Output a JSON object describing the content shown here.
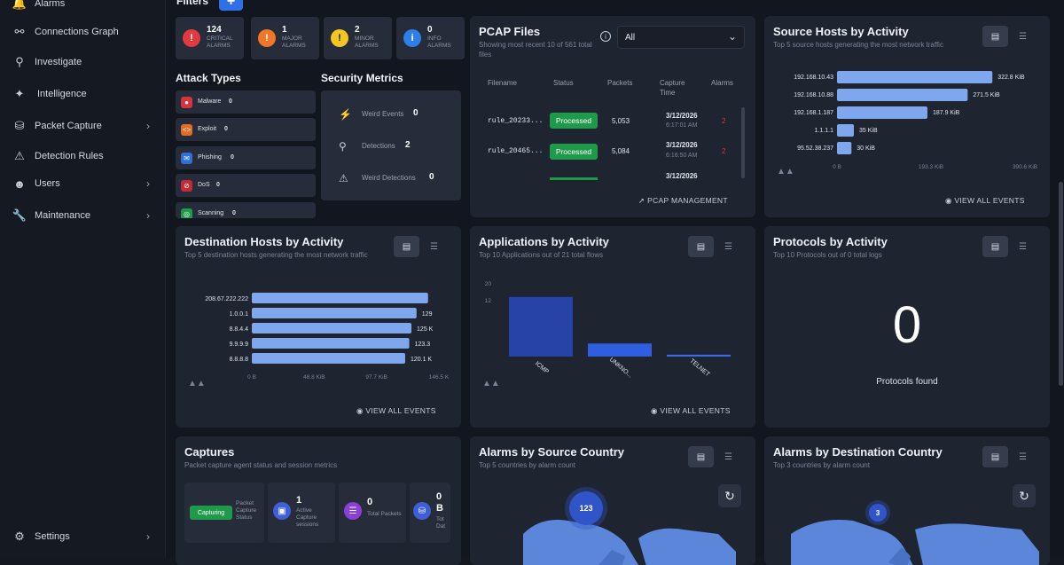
{
  "sidebar": {
    "items": [
      {
        "label": "Alarms",
        "icon": "bell-icon"
      },
      {
        "label": "Connections Graph",
        "icon": "share-icon"
      },
      {
        "label": "Investigate",
        "icon": "search-icon"
      },
      {
        "label": "Intelligence",
        "icon": "sparkle-icon"
      },
      {
        "label": "Packet Capture",
        "icon": "database-icon"
      },
      {
        "label": "Detection Rules",
        "icon": "warning-icon"
      },
      {
        "label": "Users",
        "icon": "users-icon"
      },
      {
        "label": "Maintenance",
        "icon": "wrench-icon"
      },
      {
        "label": "Settings",
        "icon": "gear-icon"
      }
    ]
  },
  "filters": {
    "label": "Filters",
    "add_label": "+"
  },
  "alarms": [
    {
      "count": "124",
      "name": "CRITICAL ALARMS",
      "color": "#e0393e"
    },
    {
      "count": "1",
      "name": "MAJOR ALARMS",
      "color": "#f0762a"
    },
    {
      "count": "2",
      "name": "MINOR ALARMS",
      "color": "#f3c623"
    },
    {
      "count": "0",
      "name": "INFO ALARMS",
      "color": "#2f7fe8"
    }
  ],
  "attack_types": {
    "title": "Attack Types",
    "items": [
      {
        "name": "Malware",
        "value": "0",
        "color": "#d6333a"
      },
      {
        "name": "Exploit",
        "value": "0",
        "color": "#e36b22"
      },
      {
        "name": "Phishing",
        "value": "0",
        "color": "#2f6fd6"
      },
      {
        "name": "DoS",
        "value": "0",
        "color": "#c42a33"
      },
      {
        "name": "Scanning",
        "value": "0",
        "color": "#1f9a4a"
      }
    ]
  },
  "security_metrics": {
    "title": "Security Metrics",
    "items": [
      {
        "name": "Weird Events",
        "value": "0"
      },
      {
        "name": "Detections",
        "value": "2"
      },
      {
        "name": "Weird Detections",
        "value": "0"
      }
    ]
  },
  "pcap": {
    "title": "PCAP Files",
    "subtitle": "Showing most recent 10 of 561 total files",
    "filter_value": "All",
    "columns": [
      "Filename",
      "Status",
      "Packets",
      "Capture Time",
      "Alarms"
    ],
    "rows": [
      {
        "filename": "rule_20233...",
        "status": "Processed",
        "packets": "5,053",
        "date": "3/12/2026",
        "time": "6:17:01 AM",
        "alarms": "2"
      },
      {
        "filename": "rule_20465...",
        "status": "Processed",
        "packets": "5,084",
        "date": "3/12/2026",
        "time": "6:16:50 AM",
        "alarms": "2"
      },
      {
        "filename": "",
        "status": "",
        "packets": "",
        "date": "3/12/2026",
        "time": "",
        "alarms": ""
      }
    ],
    "link": "PCAP MANAGEMENT"
  },
  "source_hosts": {
    "title": "Source Hosts by Activity",
    "subtitle": "Top 5 source hosts generating the most network traffic",
    "link": "VIEW ALL EVENTS"
  },
  "dest_hosts": {
    "title": "Destination Hosts by Activity",
    "subtitle": "Top 5 destination hosts generating the most network traffic",
    "link": "VIEW ALL EVENTS"
  },
  "applications": {
    "title": "Applications by Activity",
    "subtitle": "Top 10 Applications out of 21 total flows",
    "link": "VIEW ALL EVENTS"
  },
  "protocols": {
    "title": "Protocols by Activity",
    "subtitle": "Top 10 Protocols out of 0 total logs",
    "count": "0",
    "caption": "Protocols found"
  },
  "captures": {
    "title": "Captures",
    "subtitle": "Packet capture agent status and session metrics",
    "status_badge": "Capturing",
    "status_label": "Packet Capture Status",
    "active_value": "1",
    "active_label": "Active Capture sessions",
    "packets_value": "0",
    "packets_label": "Total Packets",
    "data_value": "0 B",
    "data_label": "Tot Dat"
  },
  "src_country": {
    "title": "Alarms by Source Country",
    "subtitle": "Top 5 countries by alarm count",
    "cluster": "123"
  },
  "dst_country": {
    "title": "Alarms by Destination Country",
    "subtitle": "Top 3 countries by alarm count",
    "cluster": "3"
  },
  "chart_data": [
    {
      "type": "bar",
      "orientation": "horizontal",
      "categories": [
        "192.168.10.43",
        "192.168.10.88",
        "192.168.1.187",
        "1.1.1.1",
        "95.52.38.237"
      ],
      "values": [
        322.8,
        271.5,
        187.9,
        35,
        30
      ],
      "value_labels": [
        "322.8 KiB",
        "271.5 KiB",
        "187.9 KiB",
        "35 KiB",
        "30 KiB"
      ],
      "xticks": [
        "0 B",
        "193.3 KiB",
        "390.6 KiB"
      ],
      "xlim": [
        0,
        390.6
      ]
    },
    {
      "type": "bar",
      "orientation": "horizontal",
      "categories": [
        "208.67.222.222",
        "1.0.0.1",
        "8.8.4.4",
        "9.9.9.9",
        "8.8.8.8"
      ],
      "values": [
        138,
        129,
        125,
        123.3,
        120.1
      ],
      "value_labels": [
        "",
        "129",
        "125 K",
        "123.3",
        "120.1 K"
      ],
      "xticks": [
        "0 B",
        "48.8 KiB",
        "97.7 KiB",
        "146.5 K"
      ],
      "xlim": [
        0,
        146.5
      ]
    },
    {
      "type": "bar",
      "categories": [
        "ICMP",
        "UNKNO...",
        "TELNET"
      ],
      "values": [
        16,
        3.5,
        0.5
      ],
      "yticks": [
        "20",
        "12"
      ],
      "colors": [
        "#2743a8",
        "#2f5fe0",
        "#3a6ee8"
      ],
      "ylim": [
        0,
        20
      ]
    }
  ]
}
